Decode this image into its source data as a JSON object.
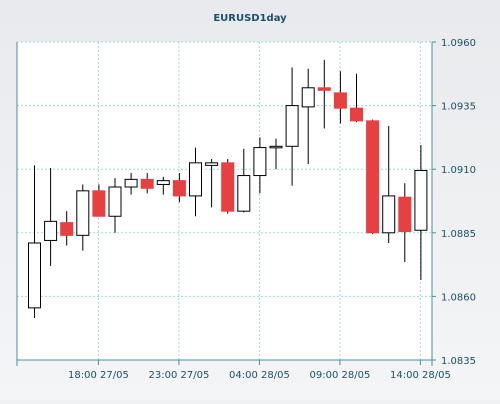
{
  "chart_data": {
    "type": "candlestick",
    "title": "EURUSD1day",
    "xlabel": "",
    "ylabel": "",
    "ylim": [
      1.0835,
      1.096
    ],
    "yticks": [
      "1.0960",
      "1.0935",
      "1.0910",
      "1.0885",
      "1.0860",
      "1.0835"
    ],
    "xtick_labels": [
      "18:00 27/05",
      "23:00 27/05",
      "04:00 28/05",
      "09:00 28/05",
      "14:00 28/05"
    ],
    "xtick_candle_index": [
      4,
      9,
      14,
      19,
      24
    ],
    "grid": true,
    "colors": {
      "up": "#ffffff",
      "down": "#e84040",
      "border": "#000000",
      "grid": "#9fd9df",
      "axis": "#4a8fa0",
      "label": "#1c4f6b"
    },
    "candles": [
      {
        "o": 1.08555,
        "h": 1.09115,
        "l": 1.08515,
        "c": 1.0881
      },
      {
        "o": 1.0882,
        "h": 1.09105,
        "l": 1.0872,
        "c": 1.08895
      },
      {
        "o": 1.0889,
        "h": 1.08935,
        "l": 1.088,
        "c": 1.0884
      },
      {
        "o": 1.0884,
        "h": 1.0904,
        "l": 1.0878,
        "c": 1.09015
      },
      {
        "o": 1.09015,
        "h": 1.0904,
        "l": 1.08915,
        "c": 1.08915
      },
      {
        "o": 1.08915,
        "h": 1.09065,
        "l": 1.0885,
        "c": 1.0903
      },
      {
        "o": 1.0903,
        "h": 1.09085,
        "l": 1.09,
        "c": 1.0906
      },
      {
        "o": 1.0906,
        "h": 1.09085,
        "l": 1.09005,
        "c": 1.09025
      },
      {
        "o": 1.0904,
        "h": 1.0907,
        "l": 1.09,
        "c": 1.09055
      },
      {
        "o": 1.09055,
        "h": 1.09085,
        "l": 1.0897,
        "c": 1.08995
      },
      {
        "o": 1.08995,
        "h": 1.09185,
        "l": 1.08915,
        "c": 1.09125
      },
      {
        "o": 1.09115,
        "h": 1.0914,
        "l": 1.0895,
        "c": 1.09125
      },
      {
        "o": 1.09125,
        "h": 1.0914,
        "l": 1.08925,
        "c": 1.08935
      },
      {
        "o": 1.08935,
        "h": 1.0918,
        "l": 1.0893,
        "c": 1.09075
      },
      {
        "o": 1.09075,
        "h": 1.09225,
        "l": 1.09005,
        "c": 1.09185
      },
      {
        "o": 1.09185,
        "h": 1.0922,
        "l": 1.091,
        "c": 1.0919
      },
      {
        "o": 1.0919,
        "h": 1.095,
        "l": 1.09035,
        "c": 1.0935
      },
      {
        "o": 1.09345,
        "h": 1.09495,
        "l": 1.0912,
        "c": 1.0942
      },
      {
        "o": 1.0942,
        "h": 1.0953,
        "l": 1.0926,
        "c": 1.0941
      },
      {
        "o": 1.094,
        "h": 1.09485,
        "l": 1.0928,
        "c": 1.0934
      },
      {
        "o": 1.0934,
        "h": 1.09475,
        "l": 1.09285,
        "c": 1.0929
      },
      {
        "o": 1.0929,
        "h": 1.09295,
        "l": 1.08845,
        "c": 1.0885
      },
      {
        "o": 1.0885,
        "h": 1.0927,
        "l": 1.0881,
        "c": 1.08995
      },
      {
        "o": 1.0899,
        "h": 1.09045,
        "l": 1.08735,
        "c": 1.08855
      },
      {
        "o": 1.0886,
        "h": 1.09195,
        "l": 1.08665,
        "c": 1.09095
      }
    ]
  }
}
